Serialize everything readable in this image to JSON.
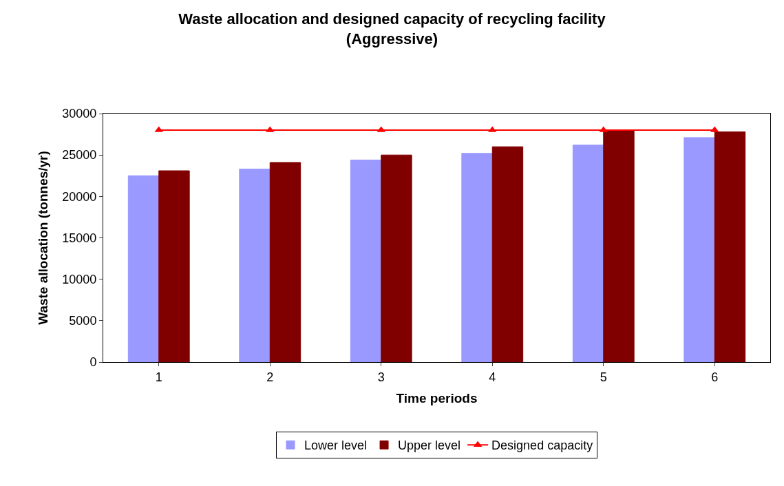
{
  "chart_data": {
    "type": "bar",
    "title": "Waste allocation and designed capacity of recycling facility\n(Aggressive)",
    "xlabel": "Time periods",
    "ylabel": "Waste allocation (tonnes/yr)",
    "categories": [
      "1",
      "2",
      "3",
      "4",
      "5",
      "6"
    ],
    "series": [
      {
        "name": "Lower level",
        "color": "#9999ff",
        "values": [
          22500,
          23300,
          24400,
          25200,
          26200,
          27100
        ]
      },
      {
        "name": "Upper level",
        "color": "#800000",
        "values": [
          23100,
          24100,
          25000,
          26000,
          28000,
          27800
        ]
      },
      {
        "name": "Designed capacity",
        "type": "line",
        "color": "#ff0000",
        "marker": "triangle",
        "values": [
          28000,
          28000,
          28000,
          28000,
          28000,
          28000
        ]
      }
    ],
    "ylim": [
      0,
      30000
    ],
    "yticks": [
      0,
      5000,
      10000,
      15000,
      20000,
      25000,
      30000
    ],
    "grid": false,
    "legend": "bottom"
  }
}
